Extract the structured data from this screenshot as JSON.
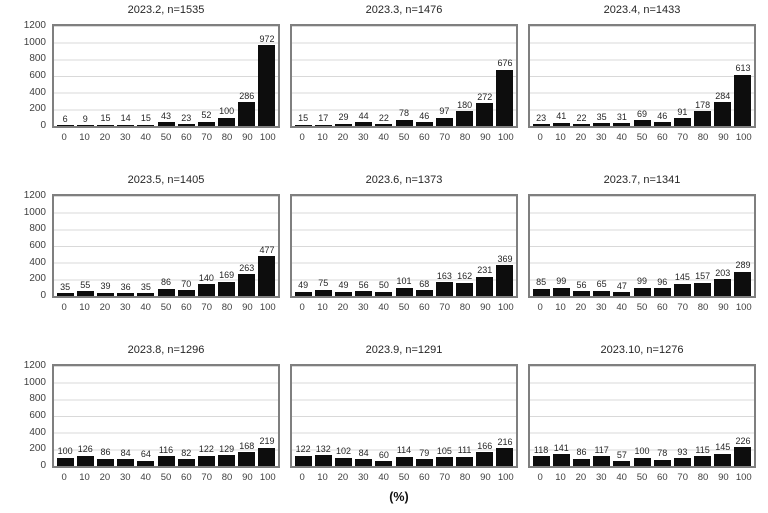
{
  "figure": {
    "xlabel": "(%)",
    "y_ticks": [
      1200,
      1000,
      800,
      600,
      400,
      200,
      0
    ],
    "x_ticks": [
      0,
      10,
      20,
      30,
      40,
      50,
      60,
      70,
      80,
      90,
      100
    ],
    "ylim": [
      0,
      1200
    ],
    "grid": "on",
    "colors": {
      "bar": "#0d0d0d",
      "grid": "#d9d9d9",
      "border": "#7f7f7f",
      "text": "#262626",
      "tick": "#404040"
    }
  },
  "chart_data": [
    {
      "type": "bar",
      "title": "2023.2, n=1535",
      "n": 1535,
      "categories": [
        0,
        10,
        20,
        30,
        40,
        50,
        60,
        70,
        80,
        90,
        100
      ],
      "values": [
        6,
        9,
        15,
        14,
        15,
        43,
        23,
        52,
        100,
        286,
        972
      ],
      "ylim": [
        0,
        1200
      ]
    },
    {
      "type": "bar",
      "title": "2023.3, n=1476",
      "n": 1476,
      "categories": [
        0,
        10,
        20,
        30,
        40,
        50,
        60,
        70,
        80,
        90,
        100
      ],
      "values": [
        15,
        17,
        29,
        44,
        22,
        78,
        46,
        97,
        180,
        272,
        676
      ],
      "ylim": [
        0,
        1200
      ]
    },
    {
      "type": "bar",
      "title": "2023.4, n=1433",
      "n": 1433,
      "categories": [
        0,
        10,
        20,
        30,
        40,
        50,
        60,
        70,
        80,
        90,
        100
      ],
      "values": [
        23,
        41,
        22,
        35,
        31,
        69,
        46,
        91,
        178,
        284,
        613
      ],
      "ylim": [
        0,
        1200
      ]
    },
    {
      "type": "bar",
      "title": "2023.5, n=1405",
      "n": 1405,
      "categories": [
        0,
        10,
        20,
        30,
        40,
        50,
        60,
        70,
        80,
        90,
        100
      ],
      "values": [
        35,
        55,
        39,
        36,
        35,
        86,
        70,
        140,
        169,
        263,
        477
      ],
      "ylim": [
        0,
        1200
      ]
    },
    {
      "type": "bar",
      "title": "2023.6, n=1373",
      "n": 1373,
      "categories": [
        0,
        10,
        20,
        30,
        40,
        50,
        60,
        70,
        80,
        90,
        100
      ],
      "values": [
        49,
        75,
        49,
        56,
        50,
        101,
        68,
        163,
        162,
        231,
        369
      ],
      "ylim": [
        0,
        1200
      ]
    },
    {
      "type": "bar",
      "title": "2023.7, n=1341",
      "n": 1341,
      "categories": [
        0,
        10,
        20,
        30,
        40,
        50,
        60,
        70,
        80,
        90,
        100
      ],
      "values": [
        85,
        99,
        56,
        65,
        47,
        99,
        96,
        145,
        157,
        203,
        289
      ],
      "ylim": [
        0,
        1200
      ]
    },
    {
      "type": "bar",
      "title": "2023.8, n=1296",
      "n": 1296,
      "categories": [
        0,
        10,
        20,
        30,
        40,
        50,
        60,
        70,
        80,
        90,
        100
      ],
      "values": [
        100,
        126,
        86,
        84,
        64,
        116,
        82,
        122,
        129,
        168,
        219
      ],
      "ylim": [
        0,
        1200
      ]
    },
    {
      "type": "bar",
      "title": "2023.9, n=1291",
      "n": 1291,
      "categories": [
        0,
        10,
        20,
        30,
        40,
        50,
        60,
        70,
        80,
        90,
        100
      ],
      "values": [
        122,
        132,
        102,
        84,
        60,
        114,
        79,
        105,
        111,
        166,
        216
      ],
      "ylim": [
        0,
        1200
      ]
    },
    {
      "type": "bar",
      "title": "2023.10, n=1276",
      "n": 1276,
      "categories": [
        0,
        10,
        20,
        30,
        40,
        50,
        60,
        70,
        80,
        90,
        100
      ],
      "values": [
        118,
        141,
        86,
        117,
        57,
        100,
        78,
        93,
        115,
        145,
        226
      ],
      "ylim": [
        0,
        1200
      ]
    }
  ]
}
